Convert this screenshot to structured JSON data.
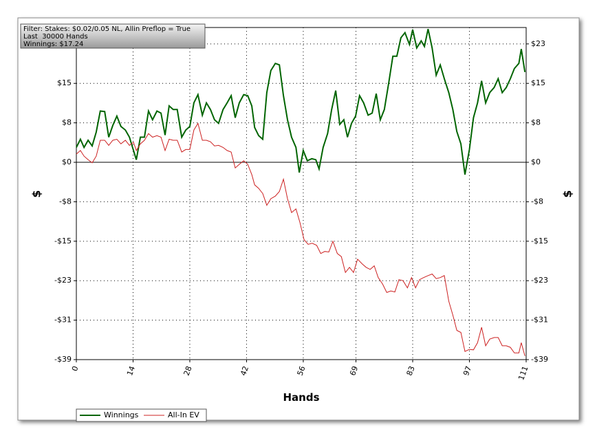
{
  "chart_data": {
    "type": "line",
    "annotations": [
      "Filter: Stakes: $0.02/0.05 NL, Allin Preflop = True",
      "Last  30000 Hands",
      "Winnings: $17.24"
    ],
    "xlabel": "Hands",
    "ylabel": "$",
    "y2label": "$",
    "xlim": [
      0,
      111
    ],
    "xticks": [
      0,
      14,
      28,
      42,
      56,
      69,
      83,
      97,
      111
    ],
    "ylim": [
      -38.5,
      26.3
    ],
    "yticks": [
      {
        "value": -38.5,
        "label": "-$39"
      },
      {
        "value": -30.8,
        "label": "-$31"
      },
      {
        "value": -23.1,
        "label": "-$23"
      },
      {
        "value": -15.4,
        "label": "-$15"
      },
      {
        "value": -7.7,
        "label": "-$8"
      },
      {
        "value": 0,
        "label": "$0"
      },
      {
        "value": 7.7,
        "label": "$8"
      },
      {
        "value": 15.4,
        "label": "$15"
      },
      {
        "value": 23.1,
        "label": "$23"
      }
    ],
    "grid": true,
    "legend": "bottom",
    "series": [
      {
        "name": "Winnings",
        "color": "#006400",
        "x": [
          0,
          1,
          1.9,
          2.9,
          3.9,
          4.9,
          5.9,
          7,
          8,
          9,
          10,
          11,
          12.1,
          13.1,
          14.8,
          15.8,
          16.8,
          17.8,
          18.8,
          19.9,
          20.9,
          21.9,
          22.9,
          23.9,
          24.9,
          26,
          27,
          28,
          29,
          30,
          31.1,
          32.1,
          33.1,
          34.1,
          35.1,
          36.2,
          37.2,
          38.2,
          39.2,
          40.2,
          41.3,
          42.3,
          43.3,
          44,
          45,
          46,
          47,
          48,
          49.1,
          50.1,
          51.1,
          52.1,
          53.1,
          54.2,
          55,
          56,
          57,
          58.1,
          59.1,
          59.9,
          60.9,
          62,
          63,
          64,
          65,
          66,
          66.9,
          67.9,
          68.9,
          69.9,
          70.9,
          72,
          73,
          74,
          75,
          76,
          77.1,
          78.1,
          79.1,
          80.1,
          81.1,
          82.2,
          83,
          84,
          85.1,
          85.9,
          86.8,
          87.8,
          88.8,
          89.8,
          90.8,
          91.9,
          92.9,
          93.9,
          94.9,
          95.9,
          97,
          98,
          99,
          100,
          101,
          102,
          103.1,
          104.1,
          105.1,
          106.1,
          107.1,
          108.1,
          109.2,
          109.8,
          110.7
        ],
        "values": [
          2.9,
          4.5,
          2.9,
          4.3,
          3.2,
          5.9,
          10,
          9.9,
          4.9,
          7.2,
          9,
          7,
          6.3,
          4.9,
          0.5,
          4.9,
          4.9,
          10,
          8.3,
          10,
          9.6,
          5.3,
          11,
          10.3,
          10.3,
          4.9,
          6.3,
          7,
          11.6,
          13.2,
          9.2,
          11.6,
          10.3,
          8.3,
          7.6,
          10.3,
          11.6,
          13,
          8.7,
          11.6,
          13.2,
          13,
          11,
          6.8,
          5.2,
          4.5,
          13.6,
          17.9,
          19.3,
          19,
          13,
          8.3,
          4.9,
          2.9,
          -2,
          2.3,
          0.3,
          0.7,
          0.5,
          -1.3,
          2.9,
          5.6,
          10.3,
          14,
          7.4,
          8.3,
          4.9,
          7.6,
          9,
          13,
          11.6,
          9.2,
          9.6,
          13.4,
          8.3,
          10.3,
          15.6,
          20.7,
          20.7,
          24.3,
          25.3,
          23,
          25.9,
          22.3,
          23.7,
          22.6,
          26,
          22.3,
          17,
          19,
          16.3,
          13.6,
          10.3,
          6,
          3.6,
          -2.4,
          2.5,
          8.7,
          11.6,
          15.9,
          11.6,
          13.6,
          14.6,
          16.3,
          13.6,
          14.6,
          16.3,
          18.3,
          19.3,
          22.1,
          17.6
        ]
      },
      {
        "name": "All-In EV",
        "color": "#cc2020",
        "x": [
          0,
          1,
          1.9,
          2.9,
          3.9,
          4.9,
          5.9,
          7,
          8,
          9,
          10,
          11,
          12.1,
          13.1,
          14.1,
          14.8,
          15.8,
          16.8,
          17.8,
          18.8,
          19.9,
          20.9,
          21.9,
          22.9,
          23.9,
          24.9,
          26,
          27,
          28,
          29,
          30,
          31.1,
          32.1,
          33.1,
          34.1,
          35.1,
          36.2,
          37.2,
          38.2,
          39.2,
          40.2,
          41.3,
          42.3,
          43.3,
          44,
          45,
          46,
          47,
          48,
          49.1,
          50.1,
          51.1,
          52.1,
          53.1,
          54.2,
          55.2,
          56.2,
          57.2,
          58.2,
          59.3,
          60.3,
          61.3,
          62.3,
          63.3,
          64.4,
          65.4,
          66.4,
          67.4,
          68.4,
          69.4,
          70.5,
          71.5,
          72.5,
          73.5,
          74.5,
          75.6,
          76.6,
          77.6,
          78.6,
          79.6,
          80.6,
          81.7,
          82.7,
          83.7,
          84.7,
          85.7,
          86.8,
          87.8,
          88.8,
          89.8,
          90.8,
          91.9,
          92.9,
          93.9,
          94.9,
          95.9,
          97,
          98,
          99,
          100,
          101,
          102,
          103.1,
          104.1,
          105.1,
          106.1,
          107.1,
          108.1,
          109.2,
          109.8,
          110.7
        ],
        "values": [
          1.6,
          2.3,
          1.2,
          0.5,
          -0.1,
          1.2,
          4.3,
          4.3,
          3.3,
          4.3,
          4.5,
          3.6,
          4.3,
          3.3,
          3.9,
          2.3,
          3.6,
          4.3,
          5.6,
          4.9,
          5.2,
          4.9,
          2.3,
          4.5,
          4.3,
          4.3,
          2,
          2.5,
          2.5,
          6.3,
          7.6,
          4.3,
          4.3,
          4,
          3.2,
          3.3,
          2.9,
          2.3,
          2,
          -1.1,
          -0.4,
          0.3,
          -0.4,
          -2.4,
          -4.4,
          -5.1,
          -6.1,
          -8.4,
          -7.1,
          -6.6,
          -5.7,
          -3.3,
          -7.1,
          -9.8,
          -9.1,
          -11.8,
          -15.1,
          -16,
          -15.8,
          -16.2,
          -17.8,
          -17.4,
          -17.5,
          -15.4,
          -17.8,
          -18.4,
          -21.5,
          -20.5,
          -21.5,
          -18.9,
          -19.8,
          -20.5,
          -20.9,
          -20.2,
          -22.5,
          -23.8,
          -25.4,
          -25.1,
          -25.3,
          -22.9,
          -23.1,
          -24.5,
          -22.5,
          -24.5,
          -22.9,
          -22.5,
          -22.1,
          -21.8,
          -22.7,
          -22.5,
          -22.1,
          -27.1,
          -29.8,
          -32.8,
          -33.2,
          -36.9,
          -36.5,
          -36.6,
          -35.2,
          -32.2,
          -35.8,
          -34.5,
          -34.2,
          -34.2,
          -35.8,
          -35.8,
          -36.1,
          -37.2,
          -37.2,
          -35.2,
          -37.8
        ]
      }
    ]
  }
}
